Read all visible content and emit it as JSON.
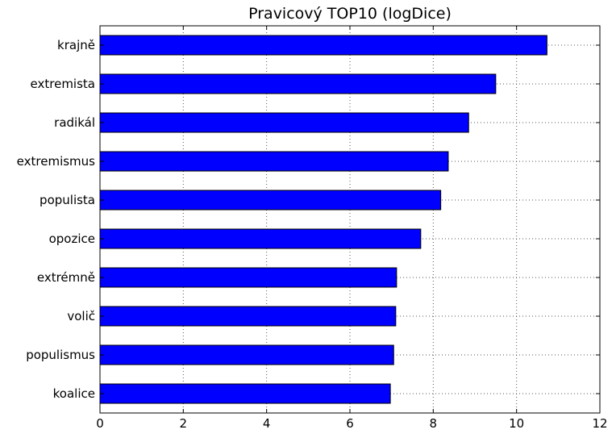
{
  "chart_data": {
    "type": "bar",
    "orientation": "horizontal",
    "title": "Pravicový TOP10 (logDice)",
    "xlabel": "",
    "ylabel": "",
    "categories": [
      "koalice",
      "populismus",
      "volič",
      "extrémně",
      "opozice",
      "populista",
      "extremismus",
      "radikál",
      "extremista",
      "krajně"
    ],
    "values": [
      6.97,
      7.05,
      7.1,
      7.12,
      7.7,
      8.18,
      8.36,
      8.85,
      9.5,
      10.73
    ],
    "xlim": [
      0,
      12
    ],
    "xticks": [
      0,
      2,
      4,
      6,
      8,
      10,
      12
    ],
    "grid": true,
    "colors": {
      "bar": "#0000ff",
      "edge": "#000000",
      "grid": "#555555"
    }
  }
}
